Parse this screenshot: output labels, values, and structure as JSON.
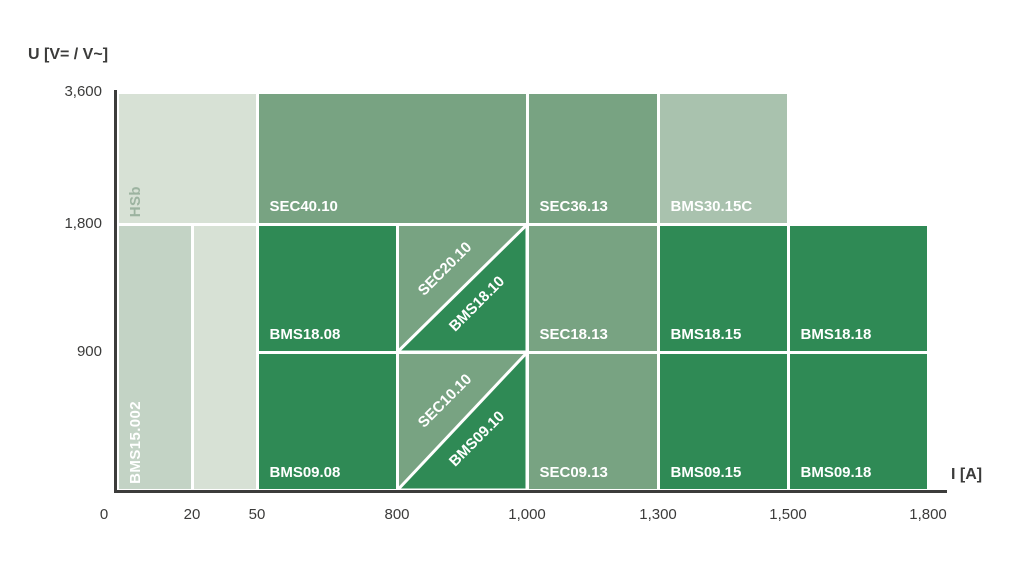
{
  "chart_data": {
    "type": "heatmap",
    "subtype": "product-selection-map",
    "title": "",
    "x_axis": {
      "label": "I [A]",
      "values": [
        0,
        20,
        50,
        800,
        1000,
        1300,
        1500,
        1800
      ],
      "ticks": [
        "0",
        "20",
        "50",
        "800",
        "1,000",
        "1,300",
        "1,500",
        "1,800"
      ]
    },
    "y_axis": {
      "label": "U [V= / V~]",
      "values": [
        900,
        1800,
        3600
      ],
      "ticks": [
        "900",
        "1,800",
        "3,600"
      ]
    },
    "grid": false,
    "legend": "none",
    "blocks": [
      {
        "label": "HSb",
        "x": [
          0,
          50
        ],
        "u": [
          1800,
          3600
        ],
        "tone": "palest",
        "label_orientation": "vertical",
        "label_tone": "muted"
      },
      {
        "label": "",
        "x": [
          20,
          50
        ],
        "u": [
          0,
          1800
        ],
        "tone": "palest"
      },
      {
        "label": "BMS15.002",
        "x": [
          0,
          20
        ],
        "u": [
          0,
          1800
        ],
        "tone": "pale",
        "label_orientation": "vertical"
      },
      {
        "label": "SEC40.10",
        "x": [
          50,
          1000
        ],
        "u": [
          1800,
          3600
        ],
        "tone": "mid"
      },
      {
        "label": "SEC36.13",
        "x": [
          1000,
          1300
        ],
        "u": [
          1800,
          3600
        ],
        "tone": "mid"
      },
      {
        "label": "BMS30.15C",
        "x": [
          1300,
          1500
        ],
        "u": [
          1800,
          3600
        ],
        "tone": "light"
      },
      {
        "label": "BMS18.08",
        "x": [
          50,
          800
        ],
        "u": [
          900,
          1800
        ],
        "tone": "dark"
      },
      {
        "shape": "split",
        "x": [
          800,
          1000
        ],
        "u": [
          900,
          1800
        ],
        "upper": {
          "label": "SEC20.10",
          "tone": "mid"
        },
        "lower": {
          "label": "BMS18.10",
          "tone": "dark"
        }
      },
      {
        "label": "SEC18.13",
        "x": [
          1000,
          1300
        ],
        "u": [
          900,
          1800
        ],
        "tone": "mid"
      },
      {
        "label": "BMS18.15",
        "x": [
          1300,
          1500
        ],
        "u": [
          900,
          1800
        ],
        "tone": "dark"
      },
      {
        "label": "BMS18.18",
        "x": [
          1500,
          1800
        ],
        "u": [
          900,
          1800
        ],
        "tone": "dark"
      },
      {
        "label": "BMS09.08",
        "x": [
          50,
          800
        ],
        "u": [
          0,
          900
        ],
        "tone": "dark"
      },
      {
        "shape": "split",
        "x": [
          800,
          1000
        ],
        "u": [
          0,
          900
        ],
        "upper": {
          "label": "SEC10.10",
          "tone": "mid"
        },
        "lower": {
          "label": "BMS09.10",
          "tone": "dark"
        }
      },
      {
        "label": "SEC09.13",
        "x": [
          1000,
          1300
        ],
        "u": [
          0,
          900
        ],
        "tone": "mid"
      },
      {
        "label": "BMS09.15",
        "x": [
          1300,
          1500
        ],
        "u": [
          0,
          900
        ],
        "tone": "dark"
      },
      {
        "label": "BMS09.18",
        "x": [
          1500,
          1800
        ],
        "u": [
          0,
          900
        ],
        "tone": "dark"
      }
    ]
  },
  "colors": {
    "dark_green": "#2f8a55",
    "mid_green": "#78a382",
    "light_green": "#a9c2ae",
    "pale_green": "#c3d3c5",
    "palest_green": "#d7e1d5",
    "muted_label": "#9cb3a0",
    "white_label": "#ffffff",
    "axis_text": "#3b3b3a",
    "divider": "#ffffff"
  }
}
